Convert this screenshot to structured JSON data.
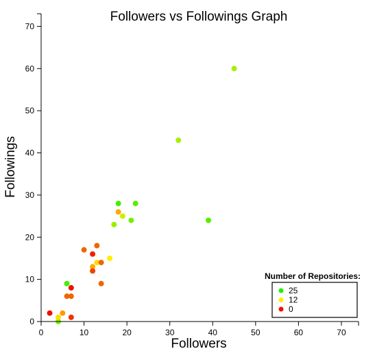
{
  "chart_data": {
    "type": "scatter",
    "title": "Followers vs Followings Graph",
    "xlabel": "Followers",
    "ylabel": "Followings",
    "xlim": [
      0,
      74
    ],
    "ylim": [
      0,
      73
    ],
    "xticks": [
      0,
      10,
      20,
      30,
      40,
      50,
      60,
      70
    ],
    "yticks": [
      0,
      10,
      20,
      30,
      40,
      50,
      60,
      70
    ],
    "legend": {
      "title": "Number of Repositories:",
      "position": "bottom-right",
      "entries": [
        {
          "label": "25",
          "color": "#22ee00"
        },
        {
          "label": "12",
          "color": "#ffee00"
        },
        {
          "label": "0",
          "color": "#ee1100"
        }
      ]
    },
    "points": [
      {
        "x": 2,
        "y": 2,
        "color": "#ee1100"
      },
      {
        "x": 4,
        "y": 0,
        "color": "#7fee00"
      },
      {
        "x": 4,
        "y": 1,
        "color": "#ffdd00"
      },
      {
        "x": 5,
        "y": 2,
        "color": "#ff9900"
      },
      {
        "x": 6,
        "y": 6,
        "color": "#ee6600"
      },
      {
        "x": 6,
        "y": 9,
        "color": "#44ee00"
      },
      {
        "x": 7,
        "y": 6,
        "color": "#ee6600"
      },
      {
        "x": 7,
        "y": 8,
        "color": "#ee1100"
      },
      {
        "x": 7,
        "y": 1,
        "color": "#ee3300"
      },
      {
        "x": 10,
        "y": 17,
        "color": "#ee6600"
      },
      {
        "x": 12,
        "y": 13,
        "color": "#ffaa00"
      },
      {
        "x": 12,
        "y": 12,
        "color": "#ee4400"
      },
      {
        "x": 12,
        "y": 16,
        "color": "#ee2200"
      },
      {
        "x": 13,
        "y": 18,
        "color": "#ee6600"
      },
      {
        "x": 13,
        "y": 14,
        "color": "#ffdd00"
      },
      {
        "x": 14,
        "y": 14,
        "color": "#ee6600"
      },
      {
        "x": 14,
        "y": 9,
        "color": "#ee6600"
      },
      {
        "x": 16,
        "y": 15,
        "color": "#ffee00"
      },
      {
        "x": 17,
        "y": 23,
        "color": "#99ee00"
      },
      {
        "x": 18,
        "y": 26,
        "color": "#ffaa00"
      },
      {
        "x": 18,
        "y": 28,
        "color": "#44ee00"
      },
      {
        "x": 19,
        "y": 25,
        "color": "#ccee00"
      },
      {
        "x": 21,
        "y": 24,
        "color": "#77ee00"
      },
      {
        "x": 22,
        "y": 28,
        "color": "#55ee00"
      },
      {
        "x": 32,
        "y": 43,
        "color": "#aaee00"
      },
      {
        "x": 39,
        "y": 24,
        "color": "#55ee00"
      },
      {
        "x": 45,
        "y": 60,
        "color": "#aaee00"
      }
    ]
  }
}
